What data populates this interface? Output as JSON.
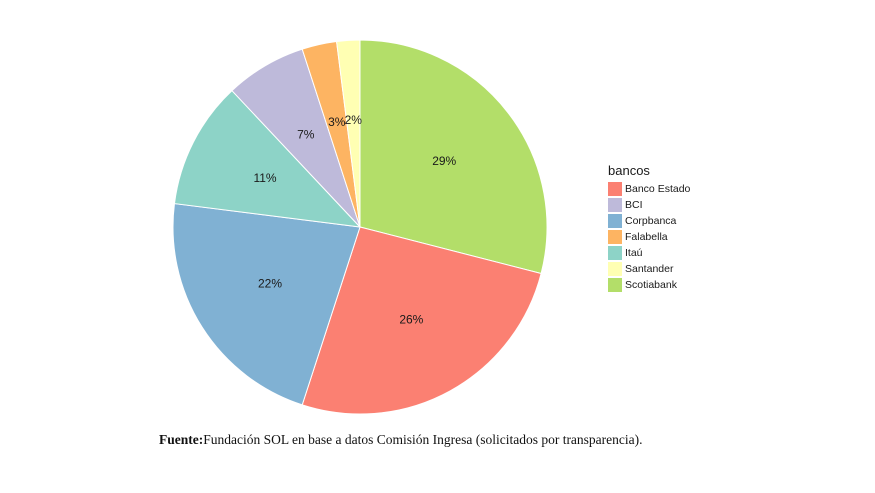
{
  "chart_data": {
    "type": "pie",
    "legend_title": "bancos",
    "legend_position": "right",
    "slices": [
      {
        "name": "Scotiabank",
        "value": 29,
        "label": "29%",
        "color": "#b3de69"
      },
      {
        "name": "Banco Estado",
        "value": 26,
        "label": "26%",
        "color": "#fb8072"
      },
      {
        "name": "Corpbanca",
        "value": 22,
        "label": "22%",
        "color": "#80b1d3"
      },
      {
        "name": "Itaú",
        "value": 11,
        "label": "11%",
        "color": "#8dd3c7"
      },
      {
        "name": "BCI",
        "value": 7,
        "label": "7%",
        "color": "#bebada"
      },
      {
        "name": "Falabella",
        "value": 3,
        "label": "3%",
        "color": "#fdb462"
      },
      {
        "name": "Santander",
        "value": 2,
        "label": "2%",
        "color": "#ffffb3"
      }
    ],
    "legend_entries": [
      {
        "name": "Banco Estado",
        "color": "#fb8072"
      },
      {
        "name": "BCI",
        "color": "#bebada"
      },
      {
        "name": "Corpbanca",
        "color": "#80b1d3"
      },
      {
        "name": "Falabella",
        "color": "#fdb462"
      },
      {
        "name": "Itaú",
        "color": "#8dd3c7"
      },
      {
        "name": "Santander",
        "color": "#ffffb3"
      },
      {
        "name": "Scotiabank",
        "color": "#b3de69"
      }
    ]
  },
  "caption": {
    "label": "Fuente:",
    "text": "Fundación SOL en base a datos Comisión Ingresa (solicitados por transparencia)."
  }
}
